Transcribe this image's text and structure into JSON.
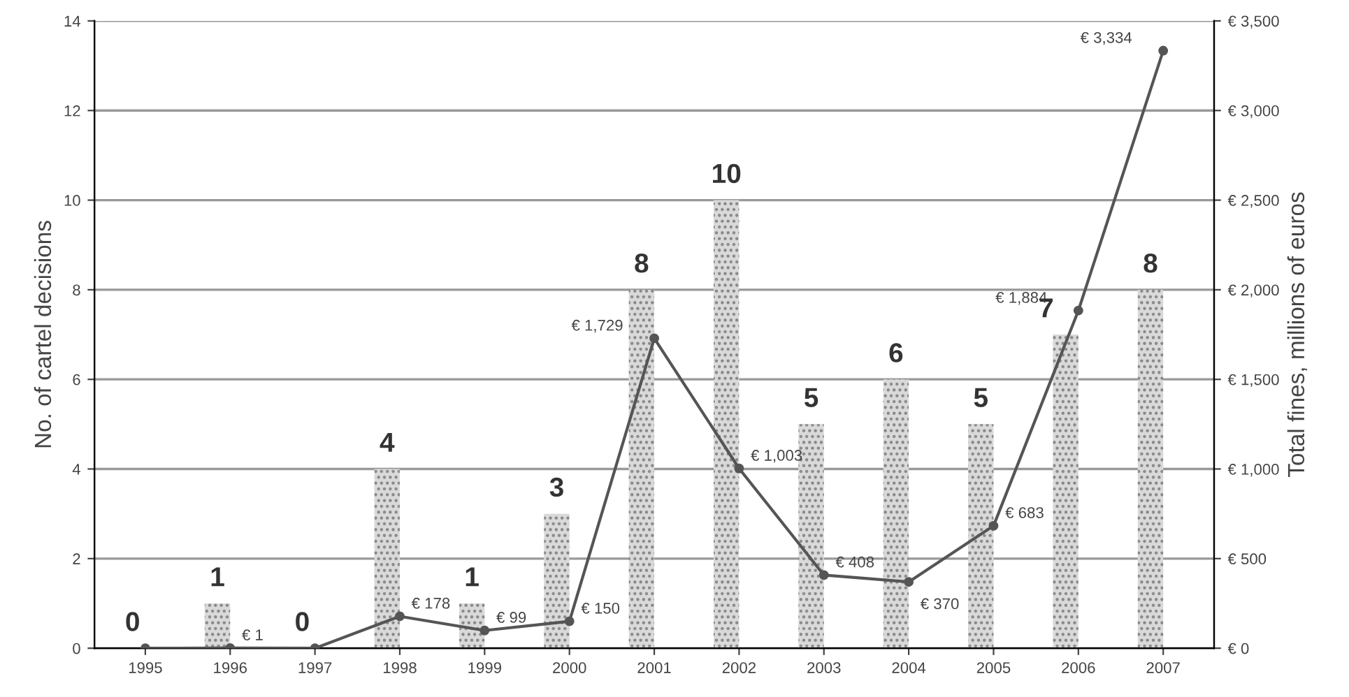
{
  "chart_data": {
    "type": "bar",
    "ylabel": "No. of cartel decisions",
    "y2label": "Total fines, millions of euros",
    "categories": [
      "1995",
      "1996",
      "1997",
      "1998",
      "1999",
      "2000",
      "2001",
      "2002",
      "2003",
      "2004",
      "2005",
      "2006",
      "2007"
    ],
    "series": [
      {
        "color": "#d9d9d9",
        "values": [
          0,
          1,
          0,
          4,
          1,
          3,
          8,
          10,
          5,
          6,
          5,
          7,
          8
        ],
        "data_labels": true
      },
      {
        "type": "line",
        "axis": "y2",
        "color": "#555555",
        "marker": "circle",
        "values": [
          0,
          1,
          0,
          178,
          99,
          150,
          1729,
          1003,
          408,
          370,
          683,
          1884,
          3334
        ],
        "value_labels": [
          null,
          "€ 1",
          null,
          "€ 178",
          "€ 99",
          "€ 150",
          "€ 1,729",
          "€ 1,003",
          "€ 408",
          "€ 370",
          "€ 683",
          "€ 1,884",
          "€ 3,334"
        ]
      }
    ],
    "ylim": [
      0,
      14
    ],
    "yticks": [
      0,
      2,
      4,
      6,
      8,
      10,
      12,
      14
    ],
    "y2lim": [
      0,
      3500
    ],
    "y2ticks": [
      {
        "value": 0,
        "label": "€ 0"
      },
      {
        "value": 500,
        "label": "€ 500"
      },
      {
        "value": 1000,
        "label": "€ 1,000"
      },
      {
        "value": 1500,
        "label": "€ 1,500"
      },
      {
        "value": 2000,
        "label": "€ 2,000"
      },
      {
        "value": 2500,
        "label": "€ 2,500"
      },
      {
        "value": 3000,
        "label": "€ 3,000"
      },
      {
        "value": 3500,
        "label": "€ 3,500"
      }
    ],
    "grid": "y"
  }
}
